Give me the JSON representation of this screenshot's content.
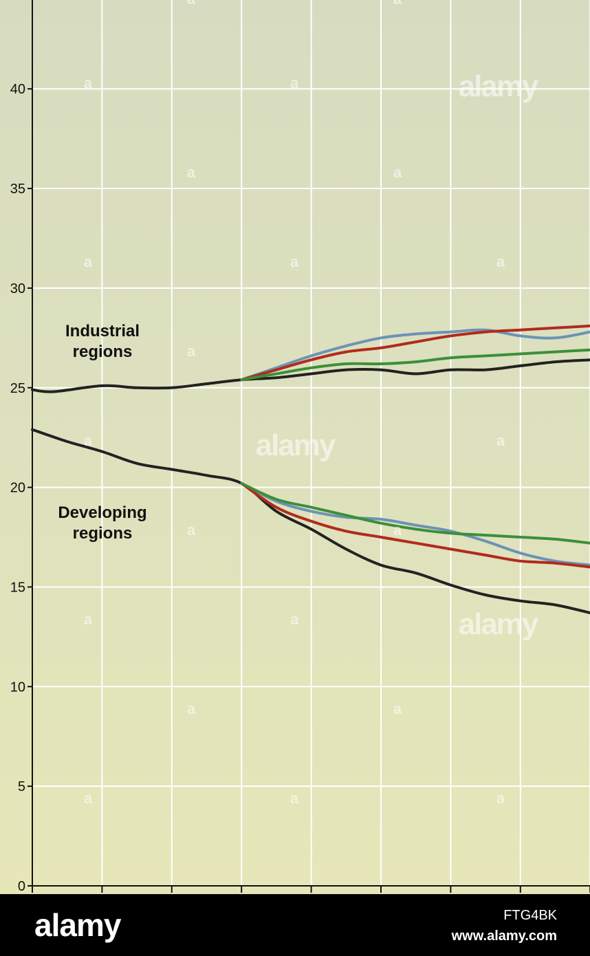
{
  "chart_data": {
    "type": "line",
    "x": [
      0,
      1,
      2,
      3,
      4,
      5,
      6,
      7,
      8
    ],
    "ylim": [
      0,
      44
    ],
    "yticks": [
      0,
      5,
      10,
      15,
      20,
      25,
      30,
      35,
      40
    ],
    "grid": true,
    "annotations": [
      {
        "lines": [
          "Industrial",
          "regions"
        ]
      },
      {
        "lines": [
          "Developing",
          "regions"
        ]
      }
    ],
    "series": [
      {
        "group": "industrial",
        "color": "#222222",
        "x": [
          0,
          0.3,
          1,
          1.5,
          2,
          2.5,
          3,
          3.5,
          4,
          4.5,
          5,
          5.5,
          6,
          6.5,
          7,
          7.5,
          8
        ],
        "values": [
          24.9,
          24.8,
          25.1,
          25.0,
          25.0,
          25.2,
          25.4,
          25.5,
          25.7,
          25.9,
          25.9,
          25.7,
          25.9,
          25.9,
          26.1,
          26.3,
          26.4
        ]
      },
      {
        "group": "industrial",
        "color": "#6b93b6",
        "x": [
          3,
          3.5,
          4,
          4.5,
          5,
          5.5,
          6,
          6.5,
          7,
          7.5,
          8
        ],
        "values": [
          25.4,
          26.0,
          26.6,
          27.1,
          27.5,
          27.7,
          27.8,
          27.9,
          27.6,
          27.5,
          27.8
        ]
      },
      {
        "group": "industrial",
        "color": "#b22a1e",
        "x": [
          3,
          3.5,
          4,
          4.5,
          5,
          5.5,
          6,
          6.5,
          7,
          7.5,
          8
        ],
        "values": [
          25.4,
          25.9,
          26.4,
          26.8,
          27.0,
          27.3,
          27.6,
          27.8,
          27.9,
          28.0,
          28.1
        ]
      },
      {
        "group": "industrial",
        "color": "#3c8f3a",
        "x": [
          3,
          3.5,
          4,
          4.5,
          5,
          5.5,
          6,
          6.5,
          7,
          7.5,
          8
        ],
        "values": [
          25.4,
          25.7,
          26.0,
          26.2,
          26.2,
          26.3,
          26.5,
          26.6,
          26.7,
          26.8,
          26.9
        ]
      },
      {
        "group": "developing",
        "color": "#222222",
        "x": [
          0,
          0.5,
          1,
          1.5,
          2,
          2.5,
          3,
          3.5,
          4,
          4.5,
          5,
          5.5,
          6,
          6.5,
          7,
          7.5,
          8
        ],
        "values": [
          22.9,
          22.3,
          21.8,
          21.2,
          20.9,
          20.6,
          20.2,
          18.8,
          17.9,
          16.9,
          16.1,
          15.7,
          15.1,
          14.6,
          14.3,
          14.1,
          13.7
        ]
      },
      {
        "group": "developing",
        "color": "#6b93b6",
        "x": [
          3,
          3.5,
          4,
          4.5,
          5,
          5.5,
          6,
          6.5,
          7,
          7.5,
          8
        ],
        "values": [
          20.2,
          19.3,
          18.8,
          18.5,
          18.4,
          18.1,
          17.8,
          17.3,
          16.7,
          16.3,
          16.1
        ]
      },
      {
        "group": "developing",
        "color": "#b22a1e",
        "x": [
          3,
          3.5,
          4,
          4.5,
          5,
          5.5,
          6,
          6.5,
          7,
          7.5,
          8
        ],
        "values": [
          20.2,
          19.0,
          18.3,
          17.8,
          17.5,
          17.2,
          16.9,
          16.6,
          16.3,
          16.2,
          16.0
        ]
      },
      {
        "group": "developing",
        "color": "#3c8f3a",
        "x": [
          3,
          3.5,
          4,
          4.5,
          5,
          5.5,
          6,
          6.5,
          7,
          7.5,
          8
        ],
        "values": [
          20.2,
          19.4,
          19.0,
          18.6,
          18.2,
          17.9,
          17.7,
          17.6,
          17.5,
          17.4,
          17.2
        ]
      }
    ]
  },
  "watermark": {
    "small_mark": "a",
    "brand": "alamy"
  },
  "footer": {
    "logo": "alamy",
    "image_id": "FTG4BK",
    "url": "www.alamy.com"
  }
}
